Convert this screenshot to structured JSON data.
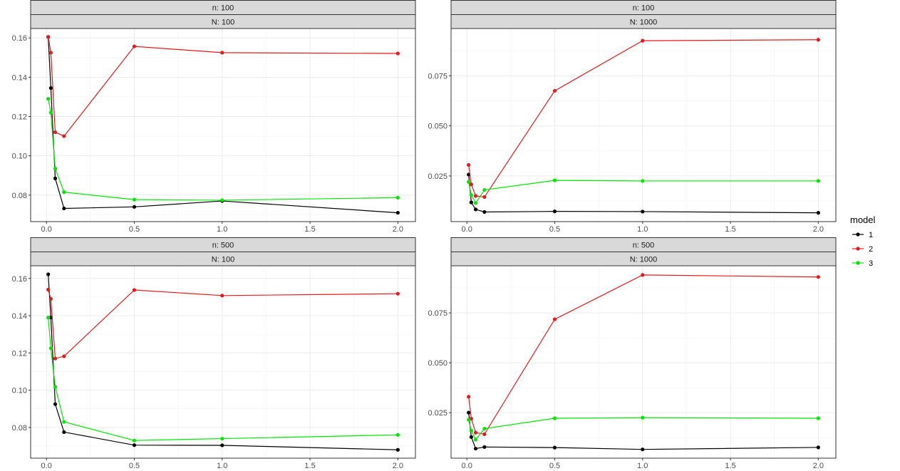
{
  "chart_data": {
    "type": "line",
    "layout": "facet-grid",
    "x": [
      0.01,
      0.025,
      0.05,
      0.1,
      0.5,
      1.0,
      2.0
    ],
    "x_ticks": [
      0.0,
      0.5,
      1.0,
      1.5,
      2.0
    ],
    "x_tick_labels": [
      "0.0",
      "0.5",
      "1.0",
      "1.5",
      "2.0"
    ],
    "xlim": [
      -0.09,
      2.1
    ],
    "legend": {
      "title": "model",
      "placement": "right",
      "entries": [
        {
          "label": "1",
          "color": "#000000"
        },
        {
          "label": "2",
          "color": "#e41a1c"
        },
        {
          "label": "3",
          "color": "#00e600"
        }
      ]
    },
    "panels": [
      {
        "strip_top": "n: 100",
        "strip_bottom": "N: 100",
        "ylim": [
          0.0665,
          0.1648
        ],
        "y_ticks": [
          0.08,
          0.1,
          0.12,
          0.14,
          0.16
        ],
        "y_tick_labels": [
          "0.08",
          "0.10",
          "0.12",
          "0.14",
          "0.16"
        ],
        "series": [
          {
            "name": "1",
            "values": [
              0.1605,
              0.1345,
              0.0885,
              0.0732,
              0.074,
              0.077,
              0.071
            ]
          },
          {
            "name": "2",
            "values": [
              0.1605,
              0.1525,
              0.112,
              0.11,
              0.1557,
              0.1525,
              0.1521
            ]
          },
          {
            "name": "3",
            "values": [
              0.129,
              0.122,
              0.0935,
              0.0815,
              0.0777,
              0.0774,
              0.0787
            ]
          }
        ]
      },
      {
        "strip_top": "n: 100",
        "strip_bottom": "N: 1000",
        "ylim": [
          0.0022,
          0.0986
        ],
        "y_ticks": [
          0.025,
          0.05,
          0.075
        ],
        "y_tick_labels": [
          "0.025",
          "0.050",
          "0.075"
        ],
        "series": [
          {
            "name": "1",
            "values": [
              0.0257,
              0.0118,
              0.0083,
              0.007,
              0.0073,
              0.0072,
              0.0066
            ]
          },
          {
            "name": "2",
            "values": [
              0.0305,
              0.0208,
              0.015,
              0.0145,
              0.0675,
              0.0925,
              0.093
            ]
          },
          {
            "name": "3",
            "values": [
              0.022,
              0.0155,
              0.0115,
              0.018,
              0.0228,
              0.0225,
              0.0225
            ]
          }
        ]
      },
      {
        "strip_top": "n: 500",
        "strip_bottom": "N: 100",
        "ylim": [
          0.0635,
          0.1668
        ],
        "y_ticks": [
          0.08,
          0.1,
          0.12,
          0.14,
          0.16
        ],
        "y_tick_labels": [
          "0.08",
          "0.10",
          "0.12",
          "0.14",
          "0.16"
        ],
        "series": [
          {
            "name": "1",
            "values": [
              0.1622,
              0.139,
              0.0925,
              0.0775,
              0.0705,
              0.0704,
              0.068
            ]
          },
          {
            "name": "2",
            "values": [
              0.154,
              0.149,
              0.117,
              0.1182,
              0.1538,
              0.1508,
              0.1518
            ]
          },
          {
            "name": "3",
            "values": [
              0.139,
              0.1225,
              0.1018,
              0.083,
              0.073,
              0.074,
              0.076
            ]
          }
        ]
      },
      {
        "strip_top": "n: 500",
        "strip_bottom": "N: 1000",
        "ylim": [
          0.0022,
          0.0986
        ],
        "y_ticks": [
          0.025,
          0.05,
          0.075
        ],
        "y_tick_labels": [
          "0.025",
          "0.050",
          "0.075"
        ],
        "series": [
          {
            "name": "1",
            "values": [
              0.025,
              0.0128,
              0.007,
              0.0078,
              0.0075,
              0.0066,
              0.0076
            ]
          },
          {
            "name": "2",
            "values": [
              0.033,
              0.022,
              0.015,
              0.0142,
              0.0718,
              0.094,
              0.093
            ]
          },
          {
            "name": "3",
            "values": [
              0.0215,
              0.016,
              0.0115,
              0.017,
              0.0222,
              0.0225,
              0.0222
            ]
          }
        ]
      }
    ]
  }
}
